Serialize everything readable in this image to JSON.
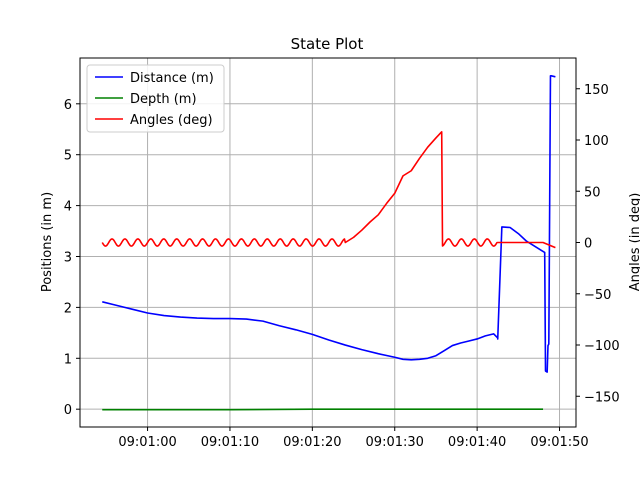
{
  "chart_data": {
    "type": "line",
    "title": "State Plot",
    "xlabel": "",
    "ylabel": "Positions (in m)",
    "y2label": "Angles (in deg)",
    "x_ticks": [
      "09:01:00",
      "09:01:10",
      "09:01:20",
      "09:01:30",
      "09:01:40",
      "09:01:50"
    ],
    "x_tick_seconds": [
      0,
      10,
      20,
      30,
      40,
      50
    ],
    "xlim_seconds": [
      -8.2,
      52.0
    ],
    "ylim": [
      -0.35,
      6.9
    ],
    "y_ticks": [
      0,
      1,
      2,
      3,
      4,
      5,
      6
    ],
    "y2lim": [
      -180,
      180
    ],
    "y2_ticks": [
      -150,
      -100,
      -50,
      0,
      50,
      100,
      150
    ],
    "grid": true,
    "legend_position": "top-left",
    "series": [
      {
        "name": "Distance (m)",
        "axis": "left",
        "color": "#0000ff",
        "x": [
          -5.5,
          -4,
          -2,
          0,
          2,
          4,
          6,
          8,
          10,
          12,
          14,
          16,
          18,
          20,
          22,
          24,
          26,
          28,
          30,
          31,
          32,
          33,
          34,
          35,
          36,
          37,
          38,
          39,
          40,
          41,
          41.5,
          42,
          42.5,
          42.5,
          43,
          44,
          45,
          46,
          47,
          48,
          48.2,
          48.3,
          48.5,
          48.6,
          48.7,
          48.9,
          49,
          49.5
        ],
        "y": [
          2.11,
          2.05,
          1.97,
          1.89,
          1.84,
          1.81,
          1.79,
          1.78,
          1.78,
          1.77,
          1.73,
          1.64,
          1.56,
          1.47,
          1.36,
          1.26,
          1.17,
          1.09,
          1.02,
          0.98,
          0.97,
          0.98,
          1.0,
          1.05,
          1.15,
          1.25,
          1.3,
          1.34,
          1.38,
          1.44,
          1.46,
          1.48,
          1.4,
          1.38,
          3.58,
          3.57,
          3.45,
          3.3,
          3.2,
          3.1,
          3.08,
          0.75,
          0.73,
          1.25,
          1.28,
          6.55,
          6.55,
          6.53
        ]
      },
      {
        "name": "Depth (m)",
        "axis": "left",
        "color": "#008000",
        "x": [
          -5.5,
          0,
          10,
          20,
          30,
          40,
          48
        ],
        "y": [
          -0.01,
          -0.01,
          -0.01,
          0.0,
          0.0,
          0.0,
          0.0
        ]
      },
      {
        "name": "Angles (deg)",
        "axis": "right",
        "color": "#ff0000",
        "x": [
          -5.5,
          24,
          25,
          26,
          27,
          28,
          29,
          30,
          31,
          32,
          33,
          34,
          35,
          35.7,
          35.8,
          42.5,
          44,
          46,
          48,
          49.5
        ],
        "y": [
          0,
          0,
          5,
          12,
          20,
          27,
          38,
          48,
          65,
          70,
          82,
          93,
          102,
          108,
          0,
          0,
          0,
          0,
          0,
          -5
        ]
      }
    ]
  }
}
